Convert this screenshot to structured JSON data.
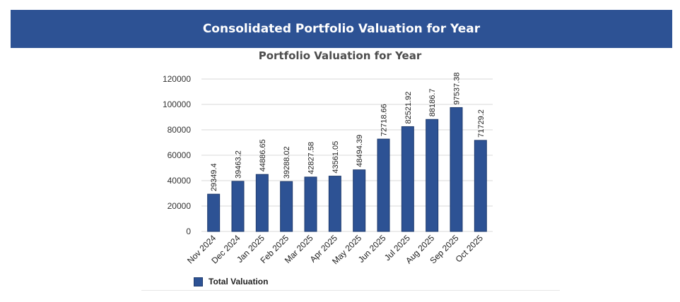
{
  "header": {
    "title": "Consolidated Portfolio Valuation for Year"
  },
  "colors": {
    "header_bg": "#2d5294",
    "bar": "#2d5294",
    "bar_stroke": "#1f3b6e",
    "grid": "#d9d9d9"
  },
  "chart_data": {
    "type": "bar",
    "title": "Portfolio Valuation for Year",
    "xlabel": "",
    "ylabel": "",
    "ylim": [
      0,
      120000
    ],
    "yticks": [
      0,
      20000,
      40000,
      60000,
      80000,
      100000,
      120000
    ],
    "grid": true,
    "legend_position": "bottom-left",
    "categories": [
      "Nov 2024",
      "Dec 2024",
      "Jan 2025",
      "Feb 2025",
      "Mar 2025",
      "Apr 2025",
      "May 2025",
      "Jun 2025",
      "Jul 2025",
      "Aug 2025",
      "Sep 2025",
      "Oct 2025"
    ],
    "series": [
      {
        "name": "Total Valuation",
        "values": [
          29349.4,
          39463.2,
          44886.65,
          39288.02,
          42827.58,
          43561.05,
          48494.39,
          72718.66,
          82521.92,
          88186.7,
          97537.38,
          71729.2
        ],
        "labels": [
          "29349.4",
          "39463.2",
          "44886.65",
          "39288.02",
          "42827.58",
          "43561.05",
          "48494.39",
          "72718.66",
          "82521.92",
          "88186.7",
          "97537.38",
          "71729.2"
        ]
      }
    ]
  }
}
